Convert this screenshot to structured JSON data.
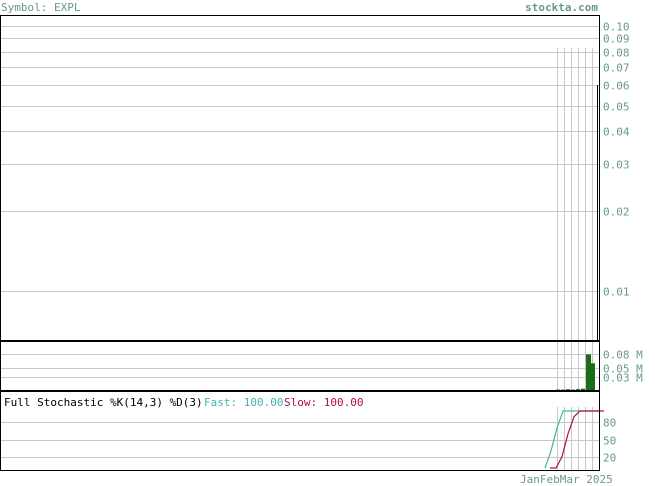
{
  "header": {
    "symbol_label": "Symbol: EXPL",
    "site": "stockta.com"
  },
  "colors": {
    "text_green": "#6a9a84",
    "grid": "#c8c8c8",
    "frame": "#000000",
    "price_line": "#000000",
    "volume_bar": "#1a6b1a",
    "fast_line": "#3fb6a8",
    "slow_line": "#b0103a",
    "title_black": "#000000"
  },
  "chart_data": [
    {
      "type": "line",
      "panel": "price",
      "scale": "log",
      "ylim": [
        0.0065,
        0.11
      ],
      "y_ticks": [
        {
          "value": 0.1,
          "label": "0.10"
        },
        {
          "value": 0.09,
          "label": "0.09"
        },
        {
          "value": 0.08,
          "label": "0.08"
        },
        {
          "value": 0.07,
          "label": "0.07"
        },
        {
          "value": 0.06,
          "label": "0.06"
        },
        {
          "value": 0.05,
          "label": "0.05"
        },
        {
          "value": 0.04,
          "label": "0.04"
        },
        {
          "value": 0.03,
          "label": "0.03"
        },
        {
          "value": 0.02,
          "label": "0.02"
        },
        {
          "value": 0.01,
          "label": "0.01"
        }
      ],
      "grid": true,
      "series": [
        {
          "values": [
            0.06,
            0.06
          ]
        }
      ]
    },
    {
      "type": "bar",
      "panel": "volume",
      "ylim": [
        0,
        0.11
      ],
      "y_ticks": [
        {
          "value": 0.08,
          "label": "0.08 M"
        },
        {
          "value": 0.05,
          "label": "0.05 M"
        },
        {
          "value": 0.03,
          "label": "0.03 M"
        }
      ],
      "values": [
        0.001,
        0.001,
        0.002,
        0.001,
        0.002,
        0.003,
        0.08,
        0.06
      ],
      "grid": true
    },
    {
      "type": "line",
      "panel": "stochastic",
      "title": "Full Stochastic %K(14,3) %D(3)",
      "ylim": [
        0,
        100
      ],
      "y_ticks": [
        {
          "value": 80,
          "label": "80"
        },
        {
          "value": 50,
          "label": "50"
        },
        {
          "value": 20,
          "label": "20"
        }
      ],
      "series": [
        {
          "name": "Fast",
          "value_label": "100.00",
          "values": [
            0,
            30,
            70,
            100,
            100,
            100,
            100,
            100,
            100,
            100
          ]
        },
        {
          "name": "Slow",
          "value_label": "100.00",
          "values": [
            0,
            0,
            20,
            60,
            90,
            100,
            100,
            100,
            100,
            100
          ]
        }
      ],
      "grid": true
    }
  ],
  "x_axis": {
    "labels": [
      "Jan",
      "Feb",
      "Mar",
      "2025"
    ],
    "text": "JanFebMar 2025"
  }
}
